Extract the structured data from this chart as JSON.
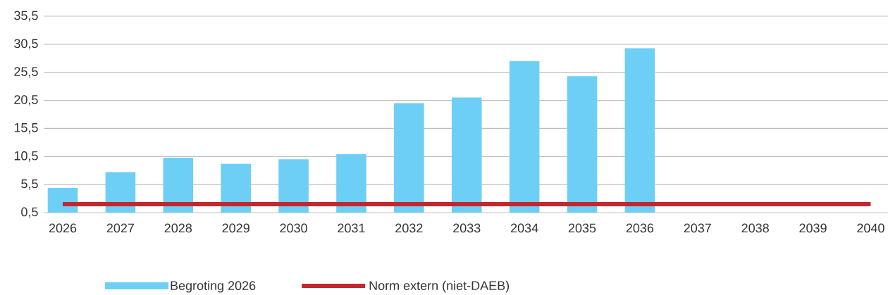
{
  "chart_data": {
    "type": "bar",
    "categories": [
      "2026",
      "2027",
      "2028",
      "2029",
      "2030",
      "2031",
      "2032",
      "2033",
      "2034",
      "2035",
      "2036",
      "2037",
      "2038",
      "2039",
      "2040"
    ],
    "series": [
      {
        "name": "Begroting 2026",
        "color": "#6dcff6",
        "values": [
          4.9,
          7.7,
          10.3,
          9.2,
          10.0,
          10.9,
          20.0,
          21.0,
          27.5,
          24.8,
          29.8,
          null,
          null,
          null,
          null
        ]
      },
      {
        "name": "Norm extern (niet-DAEB)",
        "type": "line",
        "color": "#c1272d",
        "values": [
          2,
          2,
          2,
          2,
          2,
          2,
          2,
          2,
          2,
          2,
          2,
          2,
          2,
          2,
          2
        ]
      }
    ],
    "ylim": [
      0.5,
      35.5
    ],
    "yticks": [
      {
        "value": 0.5,
        "label": "0,5"
      },
      {
        "value": 5.5,
        "label": "5,5"
      },
      {
        "value": 10.5,
        "label": "10,5"
      },
      {
        "value": 15.5,
        "label": "15,5"
      },
      {
        "value": 20.5,
        "label": "20,5"
      },
      {
        "value": 25.5,
        "label": "25,5"
      },
      {
        "value": 30.5,
        "label": "30,5"
      },
      {
        "value": 35.5,
        "label": "35,5"
      }
    ],
    "grid": "y",
    "legend": "bottom"
  }
}
